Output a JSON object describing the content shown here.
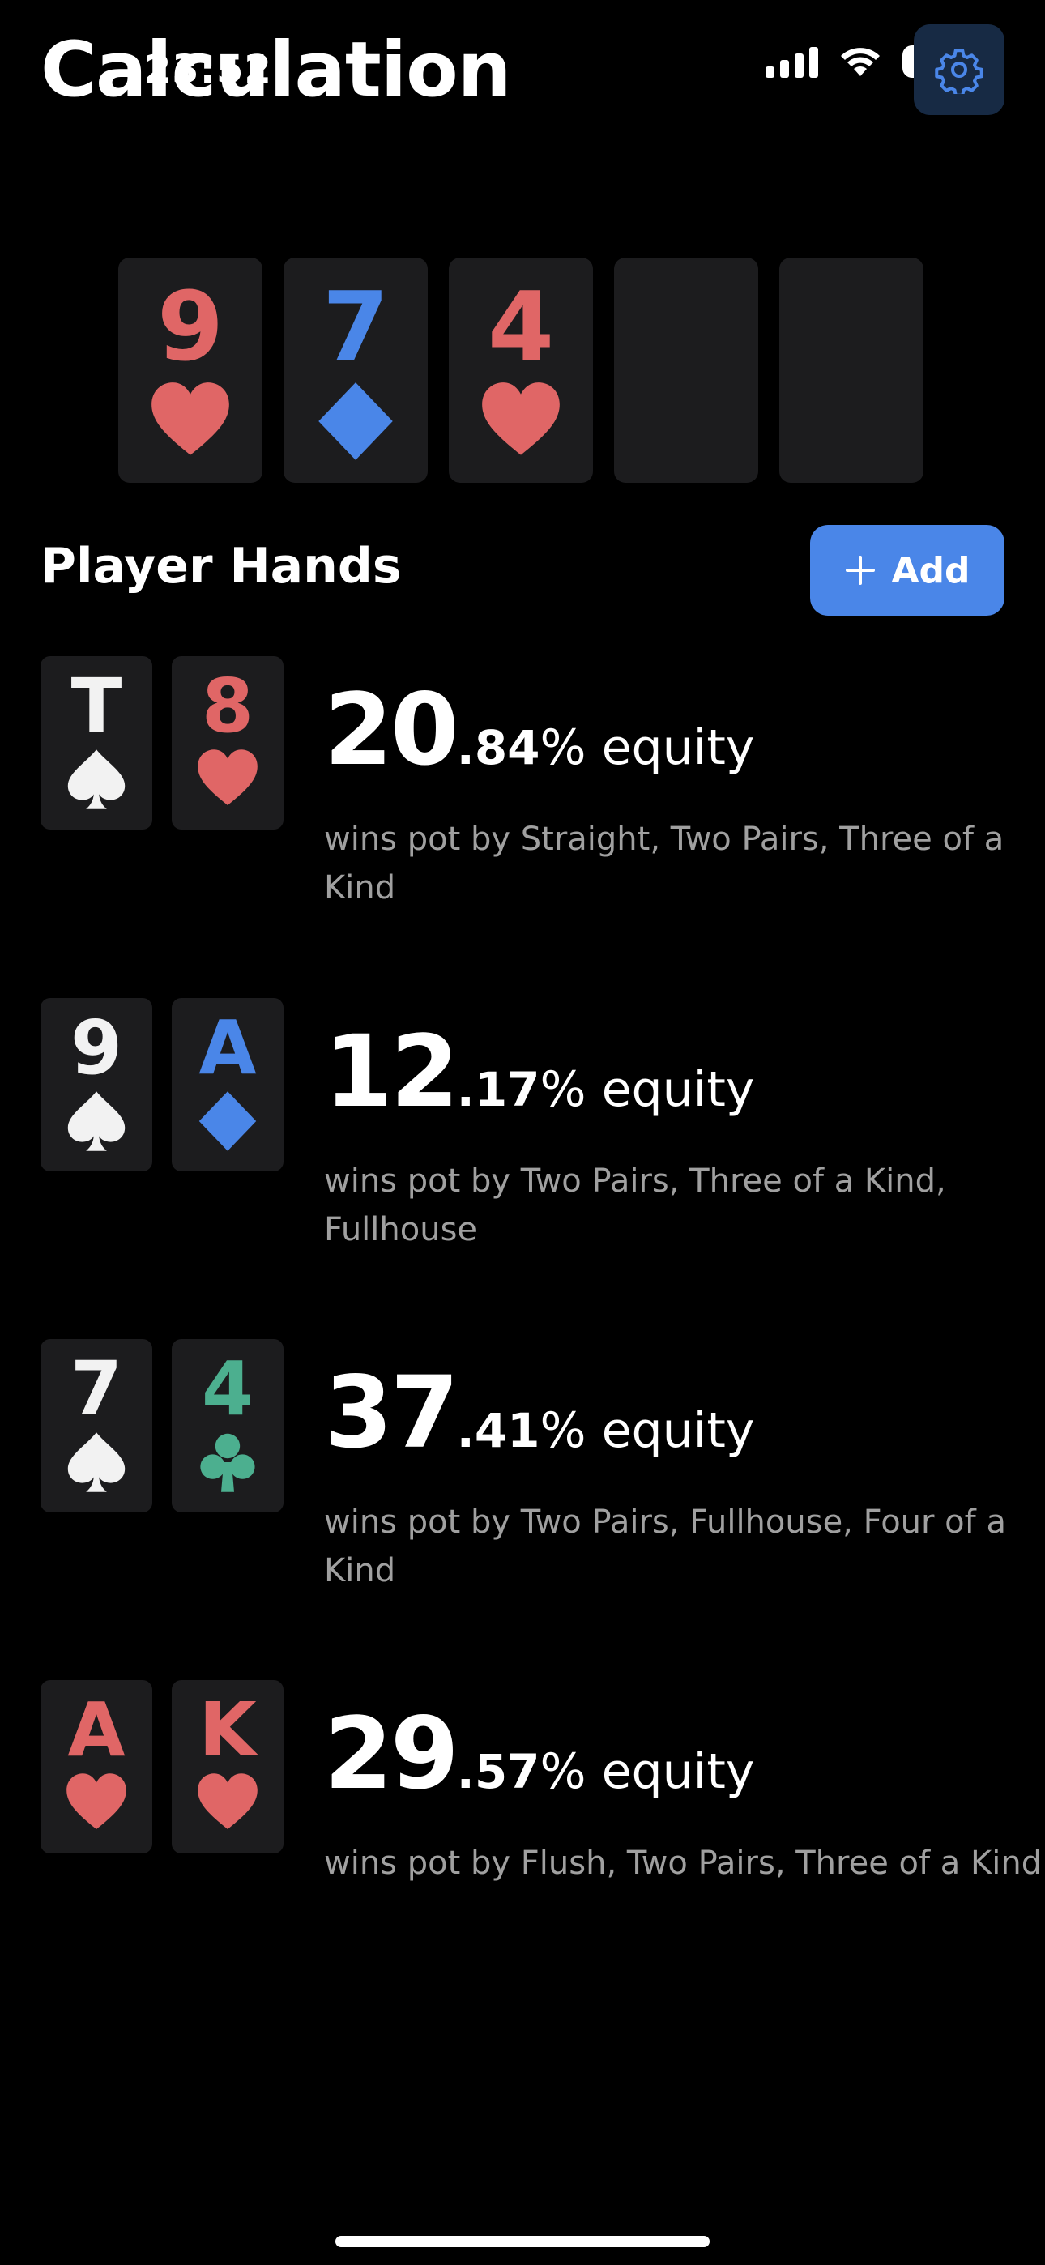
{
  "status_bar": {
    "time": "23:52",
    "battery": "72"
  },
  "header": {
    "title": "Calculation"
  },
  "board": [
    {
      "rank": "9",
      "suit": "heart",
      "color": "red"
    },
    {
      "rank": "7",
      "suit": "diamond",
      "color": "blue"
    },
    {
      "rank": "4",
      "suit": "heart",
      "color": "red"
    },
    {
      "rank": "",
      "suit": "",
      "color": ""
    },
    {
      "rank": "",
      "suit": "",
      "color": ""
    }
  ],
  "player_section": {
    "title": "Player Hands",
    "add_label": "Add"
  },
  "players": [
    {
      "cards": [
        {
          "rank": "T",
          "suit": "spade",
          "color": "white"
        },
        {
          "rank": "8",
          "suit": "heart",
          "color": "red"
        }
      ],
      "equity_int": "20",
      "equity_dec": ".84",
      "equity_suffix": "% equity",
      "wins": "wins pot by Straight, Two Pairs, Three of a Kind"
    },
    {
      "cards": [
        {
          "rank": "9",
          "suit": "spade",
          "color": "white"
        },
        {
          "rank": "A",
          "suit": "diamond",
          "color": "blue"
        }
      ],
      "equity_int": "12",
      "equity_dec": ".17",
      "equity_suffix": "% equity",
      "wins": "wins pot by Two Pairs, Three of a Kind, Fullhouse"
    },
    {
      "cards": [
        {
          "rank": "7",
          "suit": "spade",
          "color": "white"
        },
        {
          "rank": "4",
          "suit": "club",
          "color": "green"
        }
      ],
      "equity_int": "37",
      "equity_dec": ".41",
      "equity_suffix": "% equity",
      "wins": "wins pot by Two Pairs, Fullhouse, Four of a Kind"
    },
    {
      "cards": [
        {
          "rank": "A",
          "suit": "heart",
          "color": "red"
        },
        {
          "rank": "K",
          "suit": "heart",
          "color": "red"
        }
      ],
      "equity_int": "29",
      "equity_dec": ".57",
      "equity_suffix": "% equity",
      "wins": "wins pot by Flush, Two Pairs, Three of a Kind"
    }
  ],
  "colors": {
    "red": "#e06666",
    "blue": "#4a86e8",
    "green": "#4caf8f",
    "white": "#f2f2f2",
    "card_bg": "#1c1c1e",
    "accent": "#4a86e8"
  },
  "icons": {
    "settings": "gear-icon",
    "add": "plus-icon",
    "signal": "signal-icon",
    "wifi": "wifi-icon",
    "battery": "battery-icon"
  }
}
